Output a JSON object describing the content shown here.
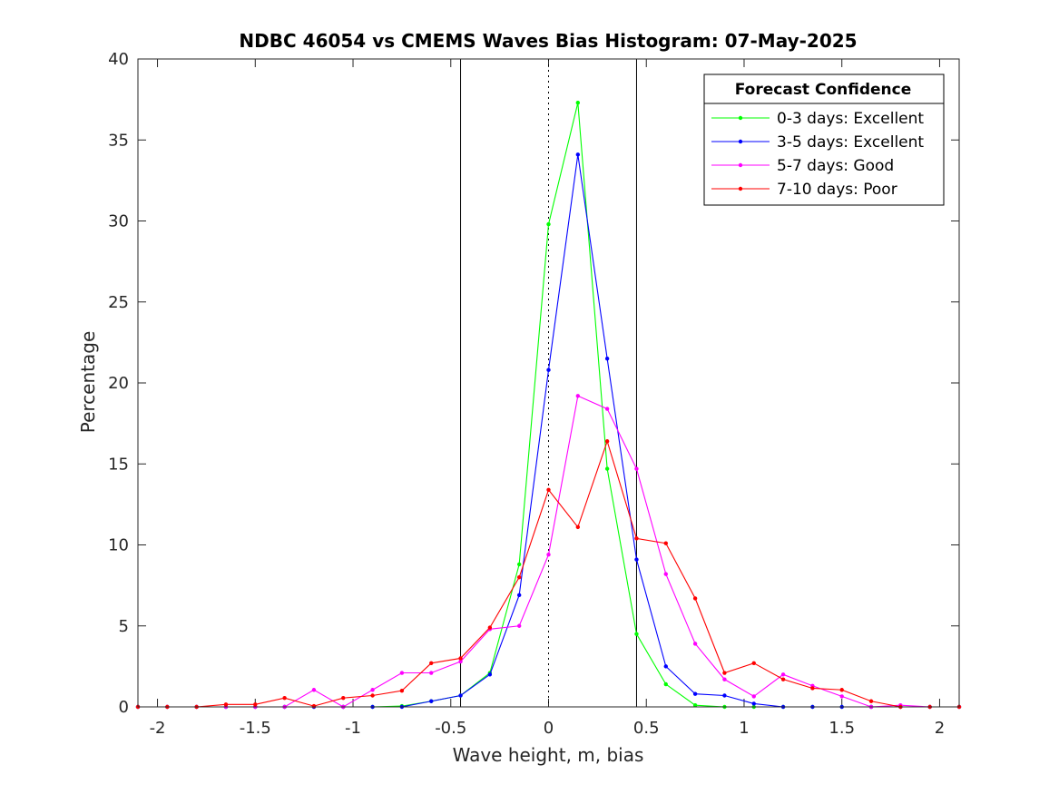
{
  "chart_data": {
    "type": "line",
    "title": "NDBC 46054 vs CMEMS Waves Bias Histogram: 07-May-2025",
    "xlabel": "Wave height, m, bias",
    "ylabel": "Percentage",
    "xlim": [
      -2.1,
      2.1
    ],
    "ylim": [
      0,
      40
    ],
    "xticks": [
      -2,
      -1.5,
      -1,
      -0.5,
      0,
      0.5,
      1,
      1.5,
      2
    ],
    "xtick_labels": [
      "-2",
      "-1.5",
      "-1",
      "-0.5",
      "0",
      "0.5",
      "1",
      "1.5",
      "2"
    ],
    "yticks": [
      0,
      5,
      10,
      15,
      20,
      25,
      30,
      35,
      40
    ],
    "ytick_labels": [
      "0",
      "5",
      "10",
      "15",
      "20",
      "25",
      "30",
      "35",
      "40"
    ],
    "vertical_lines": [
      {
        "x": -0.45,
        "style": "solid"
      },
      {
        "x": 0,
        "style": "dotted"
      },
      {
        "x": 0.45,
        "style": "solid"
      }
    ],
    "legend": {
      "title": "Forecast Confidence",
      "placement": "top-right"
    },
    "x": [
      -2.1,
      -1.95,
      -1.8,
      -1.65,
      -1.5,
      -1.35,
      -1.2,
      -1.05,
      -0.9,
      -0.75,
      -0.6,
      -0.45,
      -0.3,
      -0.15,
      0,
      0.15,
      0.3,
      0.45,
      0.6,
      0.75,
      0.9,
      1.05,
      1.2,
      1.35,
      1.5,
      1.65,
      1.8,
      1.95,
      2.1
    ],
    "series": [
      {
        "name": "0-3 days: Excellent",
        "color": "#00ff00",
        "values": [
          0,
          0,
          0,
          0,
          0,
          0,
          0,
          0,
          0,
          0.05,
          0.35,
          0.7,
          2.1,
          8.8,
          29.8,
          37.3,
          14.7,
          4.5,
          1.4,
          0.1,
          0,
          0,
          0,
          0,
          0,
          0,
          0,
          0,
          0
        ]
      },
      {
        "name": "3-5 days: Excellent",
        "color": "#0000ff",
        "values": [
          0,
          0,
          0,
          0,
          0,
          0,
          0,
          0,
          0,
          0,
          0.35,
          0.7,
          2.0,
          6.9,
          20.8,
          34.1,
          21.5,
          9.1,
          2.5,
          0.8,
          0.7,
          0.2,
          0,
          0,
          0,
          0,
          0,
          0,
          0
        ]
      },
      {
        "name": "5-7 days: Good",
        "color": "#ff00ff",
        "values": [
          0,
          0,
          0,
          0,
          0,
          0,
          1.05,
          0,
          1.05,
          2.1,
          2.1,
          2.8,
          4.8,
          5.0,
          9.4,
          19.2,
          18.4,
          14.7,
          8.2,
          3.9,
          1.7,
          0.65,
          2.0,
          1.3,
          0.65,
          0,
          0.1,
          0,
          0
        ]
      },
      {
        "name": "7-10 days: Poor",
        "color": "#ff0000",
        "values": [
          0,
          0,
          0,
          0.15,
          0.15,
          0.55,
          0.05,
          0.55,
          0.7,
          1.0,
          2.7,
          3.0,
          4.9,
          8.0,
          13.4,
          11.1,
          16.4,
          10.4,
          10.1,
          6.7,
          2.1,
          2.7,
          1.7,
          1.15,
          1.05,
          0.35,
          0,
          0,
          0
        ]
      }
    ]
  }
}
